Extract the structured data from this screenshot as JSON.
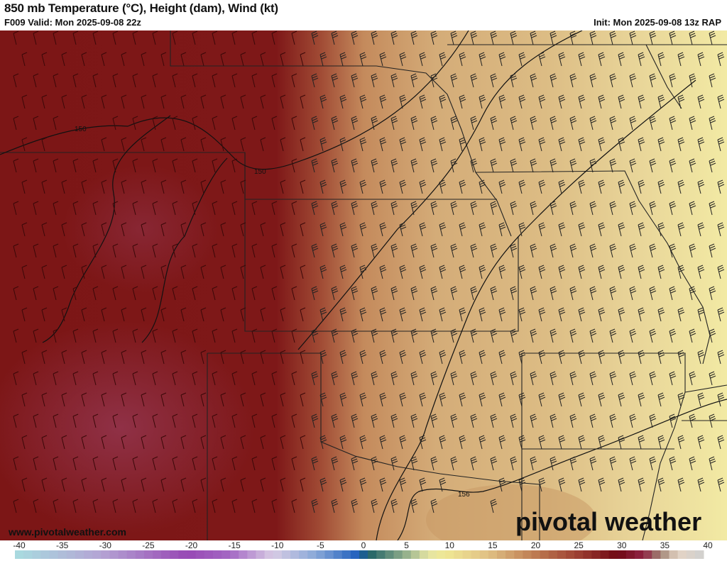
{
  "header": {
    "title": "850 mb Temperature (°C), Height (dam), Wind (kt)",
    "valid": "F009 Valid: Mon 2025-09-08 22z",
    "init": "Init: Mon 2025-09-08 13z RAP"
  },
  "map": {
    "contour_labels": [
      "150",
      "150",
      "156"
    ],
    "website": "www.pivotalweather.com",
    "logo": "pivotal weather"
  },
  "colorbar": {
    "unit": "°C",
    "ticks": [
      "-40",
      "-35",
      "-30",
      "-25",
      "-20",
      "-15",
      "-10",
      "-5",
      "0",
      "5",
      "10",
      "15",
      "20",
      "25",
      "30",
      "35",
      "40"
    ],
    "range": [
      -40,
      40
    ],
    "colors": {
      "-40": "#a8dce0",
      "-30": "#b4a4d4",
      "-20": "#9848b4",
      "-15": "#a468c4",
      "-10": "#d8cce4",
      "-5": "#88a8d8",
      "0": "#1c5cbc",
      "1": "#1c6064",
      "5": "#88a888",
      "8": "#e4e4a4",
      "10": "#f0e894",
      "15": "#e0c084",
      "20": "#c08054",
      "25": "#a04434",
      "30": "#700814",
      "33": "#902444",
      "35": "#a08474",
      "37": "#e4d4c4",
      "40": "#d0d0d0"
    }
  }
}
